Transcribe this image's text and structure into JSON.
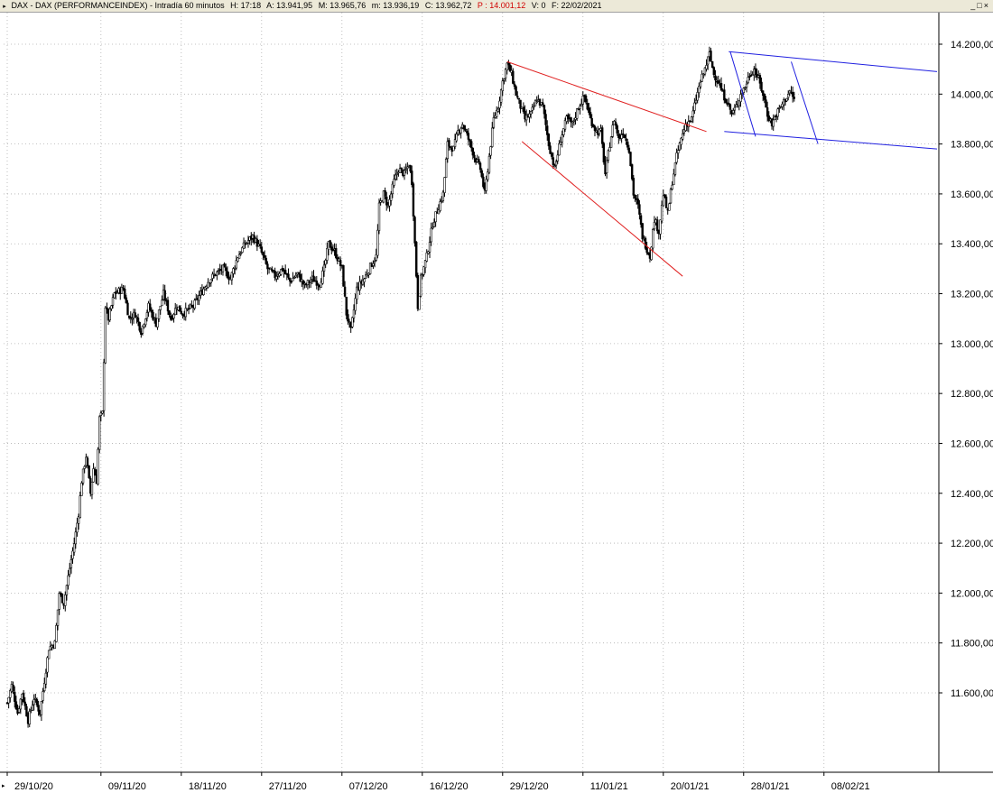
{
  "header": {
    "title": "DAX - DAX (PERFORMANCEINDEX) - Intradía 60 minutos",
    "hora": "H: 17:18",
    "apertura": "A: 13.941,95",
    "maximo": "M: 13.965,76",
    "minimo": "m: 13.936,19",
    "cierre": "C: 13.962,72",
    "precio": "P : 14.001,12",
    "volumen": "V: 0",
    "fecha": "F: 22/02/2021",
    "window_buttons": "_□×"
  },
  "chart_data": {
    "type": "candlestick",
    "timeframe": "60 minutos",
    "ylim": [
      11400,
      14300
    ],
    "y_ticks": [
      "11.600,00",
      "11.800,00",
      "12.000,00",
      "12.200,00",
      "12.400,00",
      "12.600,00",
      "12.800,00",
      "13.000,00",
      "13.200,00",
      "13.400,00",
      "13.600,00",
      "13.800,00",
      "14.000,00",
      "14.200,00"
    ],
    "y_tick_values": [
      11600,
      11800,
      12000,
      12200,
      12400,
      12600,
      12800,
      13000,
      13200,
      13400,
      13600,
      13800,
      14000,
      14200
    ],
    "x_ticks": [
      "29/10/20",
      "09/11/20",
      "18/11/20",
      "27/11/20",
      "07/12/20",
      "16/12/20",
      "29/12/20",
      "11/01/21",
      "20/01/21",
      "28/01/21",
      "08/02/21"
    ],
    "x_tick_bar_index": [
      0,
      63,
      117,
      171,
      225,
      279,
      333,
      387,
      441,
      495,
      549
    ],
    "total_bars": 625,
    "grid": true,
    "price_path": [
      [
        0,
        11560
      ],
      [
        3,
        11630
      ],
      [
        7,
        11520
      ],
      [
        10,
        11600
      ],
      [
        14,
        11490
      ],
      [
        18,
        11580
      ],
      [
        22,
        11520
      ],
      [
        25,
        11650
      ],
      [
        28,
        11780
      ],
      [
        32,
        11800
      ],
      [
        35,
        12000
      ],
      [
        38,
        11960
      ],
      [
        42,
        12100
      ],
      [
        45,
        12200
      ],
      [
        48,
        12320
      ],
      [
        50,
        12450
      ],
      [
        53,
        12550
      ],
      [
        56,
        12400
      ],
      [
        58,
        12500
      ],
      [
        60,
        12450
      ],
      [
        62,
        12700
      ],
      [
        64,
        12720
      ],
      [
        66,
        13150
      ],
      [
        68,
        13100
      ],
      [
        72,
        13200
      ],
      [
        78,
        13220
      ],
      [
        82,
        13100
      ],
      [
        86,
        13120
      ],
      [
        90,
        13050
      ],
      [
        95,
        13150
      ],
      [
        100,
        13080
      ],
      [
        105,
        13200
      ],
      [
        110,
        13100
      ],
      [
        114,
        13150
      ],
      [
        118,
        13120
      ],
      [
        125,
        13150
      ],
      [
        130,
        13200
      ],
      [
        135,
        13250
      ],
      [
        140,
        13280
      ],
      [
        145,
        13300
      ],
      [
        150,
        13260
      ],
      [
        155,
        13350
      ],
      [
        160,
        13400
      ],
      [
        165,
        13430
      ],
      [
        170,
        13380
      ],
      [
        175,
        13300
      ],
      [
        180,
        13270
      ],
      [
        185,
        13300
      ],
      [
        190,
        13250
      ],
      [
        195,
        13280
      ],
      [
        200,
        13230
      ],
      [
        205,
        13260
      ],
      [
        210,
        13240
      ],
      [
        213,
        13300
      ],
      [
        216,
        13400
      ],
      [
        220,
        13370
      ],
      [
        225,
        13300
      ],
      [
        228,
        13120
      ],
      [
        231,
        13050
      ],
      [
        235,
        13220
      ],
      [
        240,
        13260
      ],
      [
        245,
        13320
      ],
      [
        248,
        13350
      ],
      [
        250,
        13550
      ],
      [
        253,
        13600
      ],
      [
        256,
        13550
      ],
      [
        260,
        13650
      ],
      [
        263,
        13700
      ],
      [
        267,
        13680
      ],
      [
        270,
        13720
      ],
      [
        272,
        13650
      ],
      [
        274,
        13400
      ],
      [
        276,
        13150
      ],
      [
        278,
        13260
      ],
      [
        282,
        13350
      ],
      [
        286,
        13480
      ],
      [
        290,
        13550
      ],
      [
        293,
        13600
      ],
      [
        296,
        13800
      ],
      [
        300,
        13780
      ],
      [
        303,
        13850
      ],
      [
        306,
        13880
      ],
      [
        310,
        13820
      ],
      [
        314,
        13750
      ],
      [
        318,
        13700
      ],
      [
        321,
        13600
      ],
      [
        324,
        13750
      ],
      [
        327,
        13900
      ],
      [
        330,
        13950
      ],
      [
        333,
        14050
      ],
      [
        336,
        14120
      ],
      [
        339,
        14080
      ],
      [
        342,
        14000
      ],
      [
        345,
        13950
      ],
      [
        348,
        13900
      ],
      [
        352,
        13920
      ],
      [
        356,
        13980
      ],
      [
        360,
        13950
      ],
      [
        364,
        13800
      ],
      [
        368,
        13700
      ],
      [
        372,
        13820
      ],
      [
        376,
        13900
      ],
      [
        380,
        13880
      ],
      [
        384,
        13950
      ],
      [
        388,
        13990
      ],
      [
        392,
        13900
      ],
      [
        396,
        13850
      ],
      [
        399,
        13850
      ],
      [
        402,
        13680
      ],
      [
        405,
        13800
      ],
      [
        408,
        13900
      ],
      [
        411,
        13820
      ],
      [
        414,
        13850
      ],
      [
        418,
        13780
      ],
      [
        421,
        13600
      ],
      [
        424,
        13550
      ],
      [
        427,
        13430
      ],
      [
        430,
        13380
      ],
      [
        432,
        13350
      ],
      [
        435,
        13500
      ],
      [
        438,
        13450
      ],
      [
        441,
        13600
      ],
      [
        444,
        13520
      ],
      [
        447,
        13650
      ],
      [
        450,
        13750
      ],
      [
        453,
        13820
      ],
      [
        456,
        13880
      ],
      [
        460,
        13900
      ],
      [
        463,
        13980
      ],
      [
        466,
        14050
      ],
      [
        469,
        14100
      ],
      [
        472,
        14160
      ],
      [
        475,
        14080
      ],
      [
        478,
        14050
      ],
      [
        481,
        14000
      ],
      [
        484,
        13970
      ],
      [
        487,
        13920
      ],
      [
        490,
        13950
      ],
      [
        493,
        14000
      ],
      [
        496,
        14030
      ],
      [
        499,
        14080
      ],
      [
        502,
        14100
      ],
      [
        505,
        14060
      ],
      [
        508,
        14000
      ],
      [
        511,
        13920
      ],
      [
        514,
        13880
      ],
      [
        517,
        13920
      ],
      [
        520,
        13950
      ],
      [
        523,
        13980
      ],
      [
        526,
        14010
      ],
      [
        529,
        13980
      ]
    ],
    "trendlines": [
      {
        "color": "#e02020",
        "from": [
          336,
          14130
        ],
        "to": [
          470,
          13850
        ]
      },
      {
        "color": "#e02020",
        "from": [
          346,
          13810
        ],
        "to": [
          454,
          13270
        ]
      },
      {
        "color": "#2020e0",
        "from": [
          485,
          14170
        ],
        "to": [
          625,
          14090
        ]
      },
      {
        "color": "#2020e0",
        "from": [
          482,
          13850
        ],
        "to": [
          625,
          13780
        ]
      },
      {
        "color": "#2020e0",
        "from": [
          486,
          14170
        ],
        "to": [
          503,
          13830
        ]
      },
      {
        "color": "#2020e0",
        "from": [
          527,
          14130
        ],
        "to": [
          545,
          13800
        ]
      }
    ]
  }
}
